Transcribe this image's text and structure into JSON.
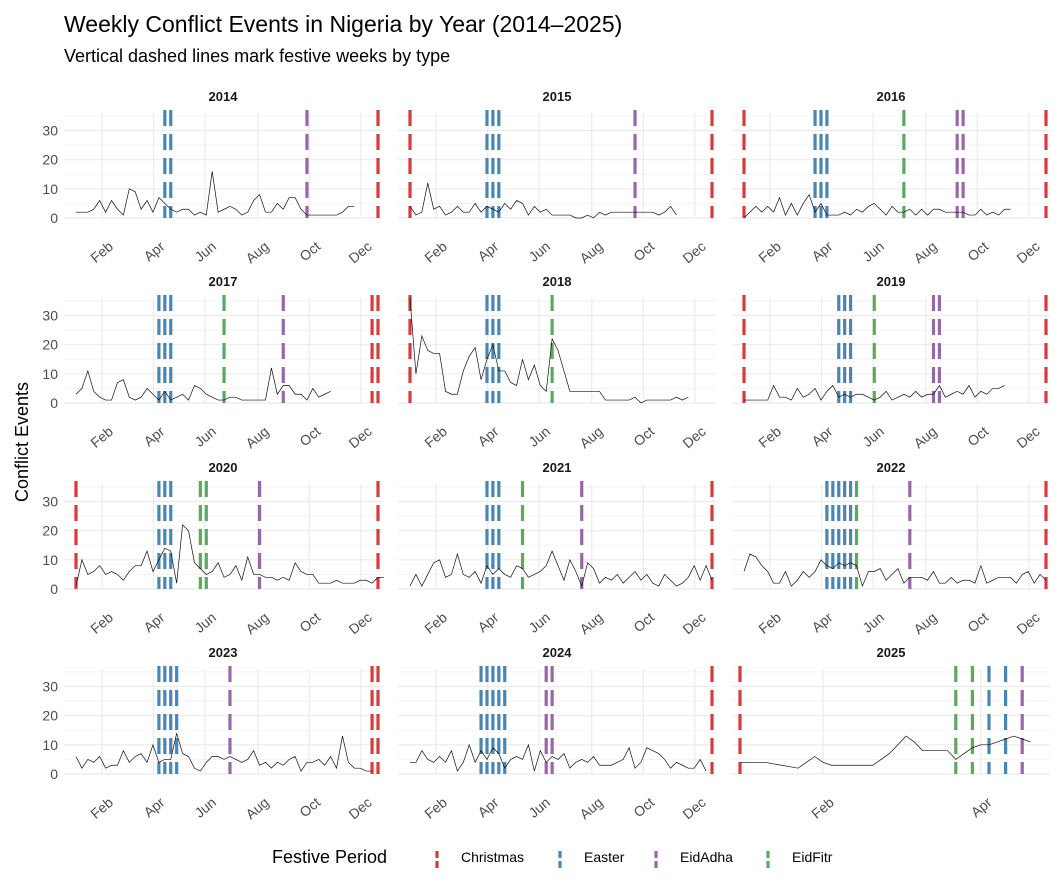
{
  "chart_data": {
    "type": "line",
    "title": "Weekly Conflict Events in Nigeria by Year (2014–2025)",
    "subtitle": "Vertical dashed lines mark festive weeks by type",
    "ylabel": "Conflict Events",
    "ylim": [
      0,
      36
    ],
    "yticks": [
      0,
      10,
      20,
      30
    ],
    "month_labels": [
      "Feb",
      "Apr",
      "Jun",
      "Aug",
      "Oct",
      "Dec"
    ],
    "legend": {
      "title": "Festive Period",
      "items": [
        {
          "name": "Christmas",
          "color": "#d73b3e"
        },
        {
          "name": "Easter",
          "color": "#4a86b4"
        },
        {
          "name": "EidAdha",
          "color": "#9966a8"
        },
        {
          "name": "EidFitr",
          "color": "#5aa962"
        }
      ]
    },
    "panels": [
      {
        "year": "2014",
        "values": [
          2,
          2,
          2,
          3,
          6,
          2,
          6,
          3,
          1,
          10,
          9,
          3,
          6,
          2,
          7,
          5,
          3,
          2,
          3,
          3,
          1,
          2,
          1,
          16,
          2,
          3,
          4,
          3,
          1,
          2,
          6,
          8,
          2,
          2,
          5,
          3,
          7,
          7,
          3,
          1,
          1,
          1,
          1,
          1,
          1,
          2,
          4,
          4
        ],
        "festive": {
          "Christmas": [
            51
          ],
          "Easter": [
            15,
            16
          ],
          "EidAdha": [
            39
          ],
          "EidFitr": []
        }
      },
      {
        "year": "2015",
        "values": [
          4,
          1,
          2,
          12,
          3,
          4,
          1,
          2,
          4,
          2,
          2,
          5,
          2,
          4,
          3,
          2,
          5,
          3,
          6,
          5,
          1,
          4,
          2,
          3,
          1,
          1,
          1,
          1,
          0,
          0,
          1,
          0,
          2,
          1,
          2,
          2,
          2,
          2,
          2,
          2,
          2,
          2,
          1,
          2,
          4,
          1
        ],
        "festive": {
          "Christmas": [
            0,
            51
          ],
          "Easter": [
            13,
            14,
            15
          ],
          "EidAdha": [
            38
          ],
          "EidFitr": []
        }
      },
      {
        "year": "2016",
        "values": [
          0,
          2,
          4,
          2,
          4,
          2,
          7,
          1,
          5,
          1,
          5,
          8,
          2,
          5,
          1,
          1,
          1,
          2,
          1,
          3,
          2,
          4,
          5,
          3,
          1,
          4,
          2,
          2,
          3,
          1,
          3,
          1,
          3,
          3,
          2,
          2,
          2,
          2,
          1,
          1,
          3,
          1,
          2,
          1,
          3,
          3
        ],
        "festive": {
          "Christmas": [
            0,
            51
          ],
          "Easter": [
            12,
            13,
            14
          ],
          "EidFitr": [
            27
          ],
          "EidAdha": [
            36,
            37
          ]
        }
      },
      {
        "year": "2017",
        "values": [
          3,
          5,
          11,
          4,
          2,
          1,
          1,
          7,
          8,
          2,
          1,
          2,
          5,
          3,
          1,
          4,
          1,
          2,
          3,
          1,
          6,
          5,
          3,
          2,
          1,
          1,
          2,
          2,
          1,
          1,
          1,
          1,
          1,
          12,
          3,
          6,
          6,
          3,
          3,
          1,
          5,
          2,
          3,
          4
        ],
        "festive": {
          "Christmas": [
            50,
            51
          ],
          "Easter": [
            14,
            15,
            16
          ],
          "EidFitr": [
            25
          ],
          "EidAdha": [
            35
          ]
        }
      },
      {
        "year": "2018",
        "values": [
          36,
          10,
          23,
          18,
          17,
          17,
          4,
          3,
          3,
          11,
          16,
          19,
          8,
          15,
          20,
          11,
          11,
          7,
          6,
          15,
          8,
          13,
          6,
          4,
          22,
          18,
          11,
          4,
          4,
          4,
          4,
          4,
          4,
          1,
          1,
          1,
          1,
          1,
          2,
          0,
          1,
          1,
          1,
          1,
          1,
          2,
          1,
          2
        ],
        "festive": {
          "Christmas": [
            0
          ],
          "Easter": [
            13,
            14,
            15
          ],
          "EidFitr": [
            24
          ]
        }
      },
      {
        "year": "2019",
        "values": [
          1,
          1,
          1,
          1,
          1,
          6,
          2,
          2,
          1,
          5,
          2,
          3,
          5,
          1,
          4,
          6,
          2,
          3,
          2,
          3,
          3,
          2,
          1,
          2,
          4,
          1,
          2,
          3,
          2,
          4,
          2,
          3,
          3,
          6,
          2,
          3,
          4,
          3,
          6,
          2,
          4,
          3,
          5,
          5,
          6
        ],
        "festive": {
          "Christmas": [
            0,
            51
          ],
          "Easter": [
            16,
            17,
            18
          ],
          "EidFitr": [
            22
          ],
          "EidAdha": [
            32,
            33
          ]
        }
      },
      {
        "year": "2020",
        "values": [
          1,
          10,
          5,
          6,
          8,
          5,
          6,
          5,
          3,
          6,
          8,
          8,
          13,
          6,
          10,
          14,
          13,
          2,
          22,
          20,
          9,
          7,
          5,
          6,
          9,
          4,
          5,
          8,
          3,
          11,
          5,
          5,
          4,
          4,
          3,
          4,
          3,
          9,
          6,
          5,
          5,
          2,
          2,
          2,
          3,
          2,
          2,
          2,
          3,
          3,
          2,
          4,
          4
        ],
        "festive": {
          "Christmas": [
            0,
            51
          ],
          "Easter": [
            14,
            15,
            16
          ],
          "EidFitr": [
            21,
            22
          ],
          "EidAdha": [
            31
          ]
        }
      },
      {
        "year": "2021",
        "values": [
          1,
          5,
          1,
          5,
          9,
          10,
          4,
          5,
          12,
          5,
          4,
          6,
          2,
          8,
          5,
          7,
          5,
          4,
          8,
          7,
          4,
          5,
          6,
          8,
          13,
          8,
          3,
          10,
          6,
          1,
          9,
          7,
          2,
          4,
          3,
          5,
          2,
          4,
          6,
          3,
          5,
          2,
          1,
          5,
          3,
          1,
          2,
          4,
          8,
          3,
          8,
          3
        ],
        "festive": {
          "Christmas": [
            51
          ],
          "Easter": [
            13,
            14,
            15
          ],
          "EidFitr": [
            19
          ],
          "EidAdha": [
            29
          ]
        }
      },
      {
        "year": "2022",
        "values": [
          6,
          12,
          11,
          8,
          6,
          2,
          2,
          6,
          1,
          3,
          6,
          4,
          6,
          10,
          8,
          7,
          9,
          8,
          9,
          8,
          1,
          6,
          6,
          7,
          3,
          5,
          7,
          2,
          4,
          4,
          4,
          3,
          6,
          2,
          2,
          4,
          2,
          3,
          3,
          2,
          8,
          2,
          3,
          4,
          4,
          4,
          2,
          5,
          6,
          2,
          5,
          3
        ],
        "festive": {
          "Christmas": [
            51
          ],
          "Easter": [
            14,
            15,
            16,
            17,
            18
          ],
          "EidFitr": [
            19
          ],
          "EidAdha": [
            28
          ]
        }
      },
      {
        "year": "2023",
        "values": [
          6,
          2,
          5,
          4,
          6,
          2,
          3,
          3,
          8,
          4,
          6,
          7,
          4,
          10,
          4,
          5,
          5,
          14,
          7,
          6,
          2,
          1,
          4,
          6,
          6,
          5,
          6,
          5,
          4,
          5,
          8,
          3,
          4,
          2,
          4,
          3,
          5,
          6,
          1,
          4,
          4,
          5,
          3,
          6,
          2,
          13,
          4,
          2,
          2,
          1,
          1
        ],
        "festive": {
          "Christmas": [
            50,
            51
          ],
          "Easter": [
            14,
            15,
            16,
            17
          ],
          "EidAdha": [
            26
          ]
        }
      },
      {
        "year": "2024",
        "values": [
          4,
          4,
          8,
          5,
          4,
          6,
          4,
          8,
          1,
          4,
          10,
          4,
          8,
          5,
          9,
          7,
          2,
          5,
          6,
          5,
          10,
          1,
          8,
          4,
          6,
          5,
          7,
          2,
          4,
          5,
          4,
          6,
          3,
          3,
          3,
          4,
          5,
          9,
          2,
          4,
          9,
          8,
          7,
          5,
          2,
          4,
          3,
          2,
          2,
          5,
          1
        ],
        "festive": {
          "Christmas": [
            51
          ],
          "Easter": [
            12,
            13,
            14,
            15,
            16
          ],
          "EidAdha": [
            23,
            24
          ]
        }
      },
      {
        "year": "2025",
        "values": [
          4,
          4,
          4,
          4,
          3.5,
          3,
          2.5,
          2,
          4,
          6,
          4,
          3,
          3,
          3,
          3,
          3,
          3,
          5,
          7,
          10,
          13,
          11,
          8,
          8,
          8,
          8,
          5,
          7,
          9,
          10,
          10,
          11,
          12,
          13,
          12,
          11
        ],
        "festive": {
          "Christmas": [
            0
          ],
          "EidFitr": [
            26,
            28
          ],
          "Easter": [
            30,
            32
          ],
          "EidAdha": [
            34
          ]
        }
      }
    ]
  }
}
